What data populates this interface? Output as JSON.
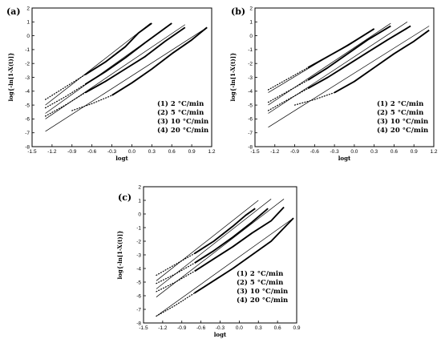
{
  "chart_data": [
    {
      "type": "line",
      "panel_label": "(a)",
      "xlabel": "logt",
      "ylabel": "log{-ln[1-X(t)]}",
      "xlim": [
        -1.5,
        1.2
      ],
      "ylim": [
        -8,
        2
      ],
      "xticks": [
        -1.5,
        -1.2,
        -0.9,
        -0.6,
        -0.3,
        0.0,
        0.3,
        0.6,
        0.9,
        1.2
      ],
      "yticks": [
        -8,
        -7,
        -6,
        -5,
        -4,
        -3,
        -2,
        -1,
        0,
        1,
        2
      ],
      "legend": [
        "(1) 2 °C/min",
        "(2) 5 °C/min",
        "(3) 10 °C/min",
        "(4) 20 °C/min"
      ],
      "series": [
        {
          "name": "(1) 2 °C/min",
          "x": [
            -1.3,
            -1.0,
            -0.7,
            -0.4,
            -0.1,
            0.1,
            0.3
          ],
          "y": [
            -4.6,
            -3.7,
            -2.8,
            -1.9,
            -0.8,
            0.2,
            0.9
          ]
        },
        {
          "name": "(2) 5 °C/min",
          "x": [
            -1.3,
            -1.0,
            -0.7,
            -0.4,
            -0.1,
            0.2,
            0.6
          ],
          "y": [
            -5.2,
            -4.4,
            -3.5,
            -2.6,
            -1.6,
            -0.5,
            0.9
          ]
        },
        {
          "name": "(3) 10 °C/min",
          "x": [
            -1.3,
            -1.0,
            -0.7,
            -0.4,
            -0.1,
            0.2,
            0.5,
            0.8
          ],
          "y": [
            -5.8,
            -5.0,
            -4.1,
            -3.3,
            -2.4,
            -1.5,
            -0.4,
            0.6
          ]
        },
        {
          "name": "(4) 20 °C/min",
          "x": [
            -0.9,
            -0.6,
            -0.3,
            0.0,
            0.3,
            0.6,
            0.9,
            1.13
          ],
          "y": [
            -5.4,
            -4.9,
            -4.3,
            -3.4,
            -2.4,
            -1.3,
            -0.3,
            0.6
          ]
        }
      ],
      "fits": [
        {
          "x": [
            -1.3,
            0.28
          ],
          "y": [
            -5.0,
            0.9
          ]
        },
        {
          "x": [
            -1.3,
            0.6
          ],
          "y": [
            -5.6,
            0.9
          ]
        },
        {
          "x": [
            -1.3,
            0.8
          ],
          "y": [
            -6.0,
            0.8
          ]
        },
        {
          "x": [
            -1.3,
            1.13
          ],
          "y": [
            -6.9,
            0.6
          ]
        }
      ]
    },
    {
      "type": "line",
      "panel_label": "(b)",
      "xlabel": "logt",
      "ylabel": "log{-ln[1-X(t)]}",
      "xlim": [
        -1.5,
        1.2
      ],
      "ylim": [
        -8,
        2
      ],
      "xticks": [
        -1.5,
        -1.2,
        -0.9,
        -0.6,
        -0.3,
        0.0,
        0.3,
        0.6,
        0.9,
        1.2
      ],
      "yticks": [
        -8,
        -7,
        -6,
        -5,
        -4,
        -3,
        -2,
        -1,
        0,
        1,
        2
      ],
      "legend": [
        "(1) 2 °C/min",
        "(2) 5 °C/min",
        "(3) 10 °C/min",
        "(4) 20 °C/min"
      ],
      "series": [
        {
          "name": "(1) 2 °C/min",
          "x": [
            -1.3,
            -1.0,
            -0.7,
            -0.4,
            -0.1,
            0.1,
            0.3
          ],
          "y": [
            -3.9,
            -3.1,
            -2.3,
            -1.5,
            -0.7,
            -0.1,
            0.5
          ]
        },
        {
          "name": "(2) 5 °C/min",
          "x": [
            -1.3,
            -1.0,
            -0.7,
            -0.4,
            -0.1,
            0.2,
            0.55
          ],
          "y": [
            -4.8,
            -4.0,
            -3.2,
            -2.3,
            -1.3,
            -0.3,
            0.7
          ]
        },
        {
          "name": "(3) 10 °C/min",
          "x": [
            -1.3,
            -1.0,
            -0.7,
            -0.4,
            -0.1,
            0.2,
            0.5,
            0.85
          ],
          "y": [
            -5.4,
            -4.6,
            -3.8,
            -3.0,
            -2.1,
            -1.2,
            -0.3,
            0.7
          ]
        },
        {
          "name": "(4) 20 °C/min",
          "x": [
            -0.9,
            -0.6,
            -0.3,
            0.0,
            0.3,
            0.6,
            0.9,
            1.13
          ],
          "y": [
            -5.0,
            -4.6,
            -4.1,
            -3.3,
            -2.3,
            -1.3,
            -0.4,
            0.4
          ]
        }
      ],
      "fits": [
        {
          "x": [
            -1.3,
            0.3
          ],
          "y": [
            -4.1,
            0.5
          ]
        },
        {
          "x": [
            -1.3,
            0.55
          ],
          "y": [
            -5.0,
            0.9
          ]
        },
        {
          "x": [
            -1.3,
            0.8
          ],
          "y": [
            -5.6,
            1.0
          ]
        },
        {
          "x": [
            -1.3,
            1.13
          ],
          "y": [
            -6.6,
            0.7
          ]
        }
      ]
    },
    {
      "type": "line",
      "panel_label": "(c)",
      "xlabel": "logt",
      "ylabel": "log{-ln[1-X(t)]}",
      "xlim": [
        -1.5,
        0.9
      ],
      "ylim": [
        -8,
        2
      ],
      "xticks": [
        -1.5,
        -1.2,
        -0.9,
        -0.6,
        -0.3,
        0.0,
        0.3,
        0.6,
        0.9
      ],
      "yticks": [
        -8,
        -7,
        -6,
        -5,
        -4,
        -3,
        -2,
        -1,
        0,
        1,
        2
      ],
      "legend": [
        "(1) 2 °C/min",
        "(2) 5 °C/min",
        "(3) 10 °C/min",
        "(4) 20 °C/min"
      ],
      "series": [
        {
          "name": "(1) 2 °C/min",
          "x": [
            -1.3,
            -1.0,
            -0.7,
            -0.4,
            -0.1,
            0.1,
            0.25
          ],
          "y": [
            -4.5,
            -3.7,
            -2.9,
            -2.0,
            -0.9,
            -0.1,
            0.4
          ]
        },
        {
          "name": "(2) 5 °C/min",
          "x": [
            -1.3,
            -1.0,
            -0.7,
            -0.4,
            -0.1,
            0.2,
            0.45
          ],
          "y": [
            -5.1,
            -4.4,
            -3.6,
            -2.7,
            -1.7,
            -0.6,
            0.4
          ]
        },
        {
          "name": "(3) 10 °C/min",
          "x": [
            -1.3,
            -1.0,
            -0.7,
            -0.4,
            -0.1,
            0.2,
            0.5,
            0.7
          ],
          "y": [
            -5.7,
            -5.0,
            -4.2,
            -3.3,
            -2.4,
            -1.4,
            -0.5,
            0.5
          ]
        },
        {
          "name": "(4) 20 °C/min",
          "x": [
            -1.3,
            -1.0,
            -0.7,
            -0.4,
            -0.1,
            0.2,
            0.5,
            0.85
          ],
          "y": [
            -7.5,
            -6.7,
            -5.8,
            -4.9,
            -4.0,
            -3.0,
            -2.0,
            -0.3
          ]
        }
      ],
      "fits": [
        {
          "x": [
            -1.3,
            0.3
          ],
          "y": [
            -4.9,
            1.0
          ]
        },
        {
          "x": [
            -1.3,
            0.5
          ],
          "y": [
            -5.5,
            1.1
          ]
        },
        {
          "x": [
            -1.3,
            0.7
          ],
          "y": [
            -6.1,
            1.1
          ]
        },
        {
          "x": [
            -1.3,
            0.85
          ],
          "y": [
            -7.5,
            -0.3
          ]
        }
      ]
    }
  ]
}
